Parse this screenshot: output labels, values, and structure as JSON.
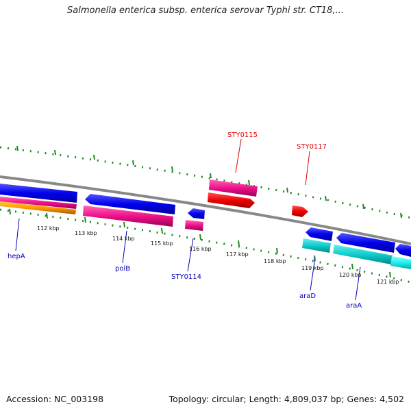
{
  "title": "Salmonella enterica subsp. enterica serovar Typhi str. CT18,...",
  "footer": {
    "accession": "Accession: NC_003198",
    "topology": "Topology: circular; Length: 4,809,037 bp; Genes: 4,502"
  },
  "ticks": [
    "112 kbp",
    "113 kbp",
    "114 kbp",
    "115 kbp",
    "116 kbp",
    "117 kbp",
    "118 kbp",
    "119 kbp",
    "120 kbp",
    "121 kbp"
  ],
  "gene_labels_forward": [
    "STY0115",
    "STY0117"
  ],
  "gene_labels_reverse": [
    "hepA",
    "polB",
    "STY0114",
    "araD",
    "araA"
  ],
  "colors": {
    "backbone": "#888888",
    "tick": "#228822",
    "forward_label": "#dd0000",
    "reverse_label": "#0000bb",
    "blue_feature": "#0000ee",
    "pink_feature": "#ee1188",
    "red_feature": "#ee0000",
    "cyan_feature": "#11cccc",
    "orange_feature": "#ff9900"
  }
}
